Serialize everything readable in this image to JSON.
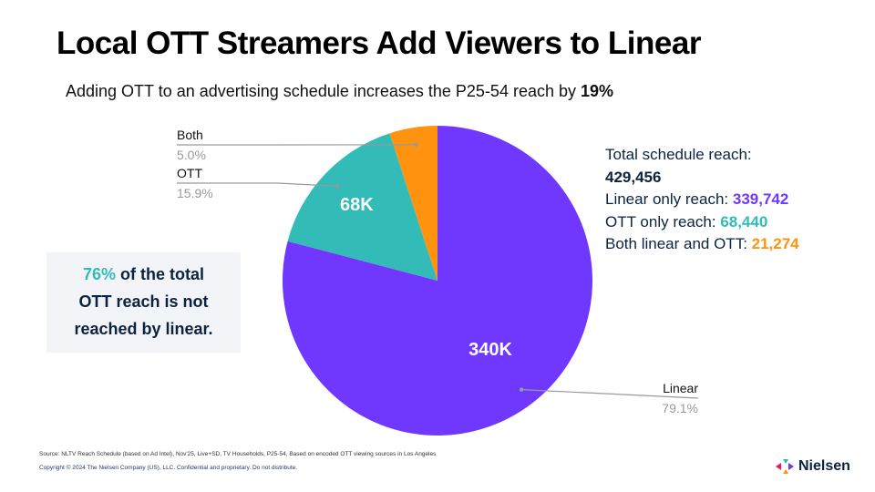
{
  "title": "Local OTT Streamers Add Viewers to Linear",
  "subtitle": {
    "text": "Adding OTT to an advertising schedule increases the P25-54 reach by ",
    "highlight": "19%"
  },
  "chart_data": {
    "type": "pie",
    "title": "",
    "start": "top",
    "direction": "clockwise",
    "slices": [
      {
        "name": "Linear",
        "percent": 79.1,
        "percent_label": "79.1%",
        "value": 339742,
        "inner_label": "340K",
        "color": "#7038ff"
      },
      {
        "name": "OTT",
        "percent": 15.9,
        "percent_label": "15.9%",
        "value": 68440,
        "inner_label": "68K",
        "color": "#33bbb7"
      },
      {
        "name": "Both",
        "percent": 5.0,
        "percent_label": "5.0%",
        "value": 21274,
        "inner_label": "",
        "color": "#ff930f"
      }
    ]
  },
  "stats": {
    "total_label": "Total schedule reach:",
    "total_value": "429,456",
    "linear_label": "Linear only reach: ",
    "linear_value": "339,742",
    "ott_label": "OTT only reach: ",
    "ott_value": "68,440",
    "both_label": "Both linear and OTT: ",
    "both_value": "21,274"
  },
  "callout": {
    "highlight": "76%",
    "line1_rest": " of the total",
    "line2": "OTT reach is not",
    "line3": "reached by linear."
  },
  "footer": {
    "source": "Source: NLTV Reach Schedule (based on Ad Intel), Nov'25, Live+SD, TV Households, P25-54, Based on encoded OTT viewing sources in Los Angeles",
    "copyright": "Copyright © 2024 The Nielsen Company (US), LLC. Confidential and proprietary. Do not distribute."
  },
  "logo": {
    "text": "Nielsen"
  },
  "colors": {
    "linear": "#7038ff",
    "ott": "#33bbb7",
    "both": "#ff930f",
    "navy": "#0c2340"
  }
}
